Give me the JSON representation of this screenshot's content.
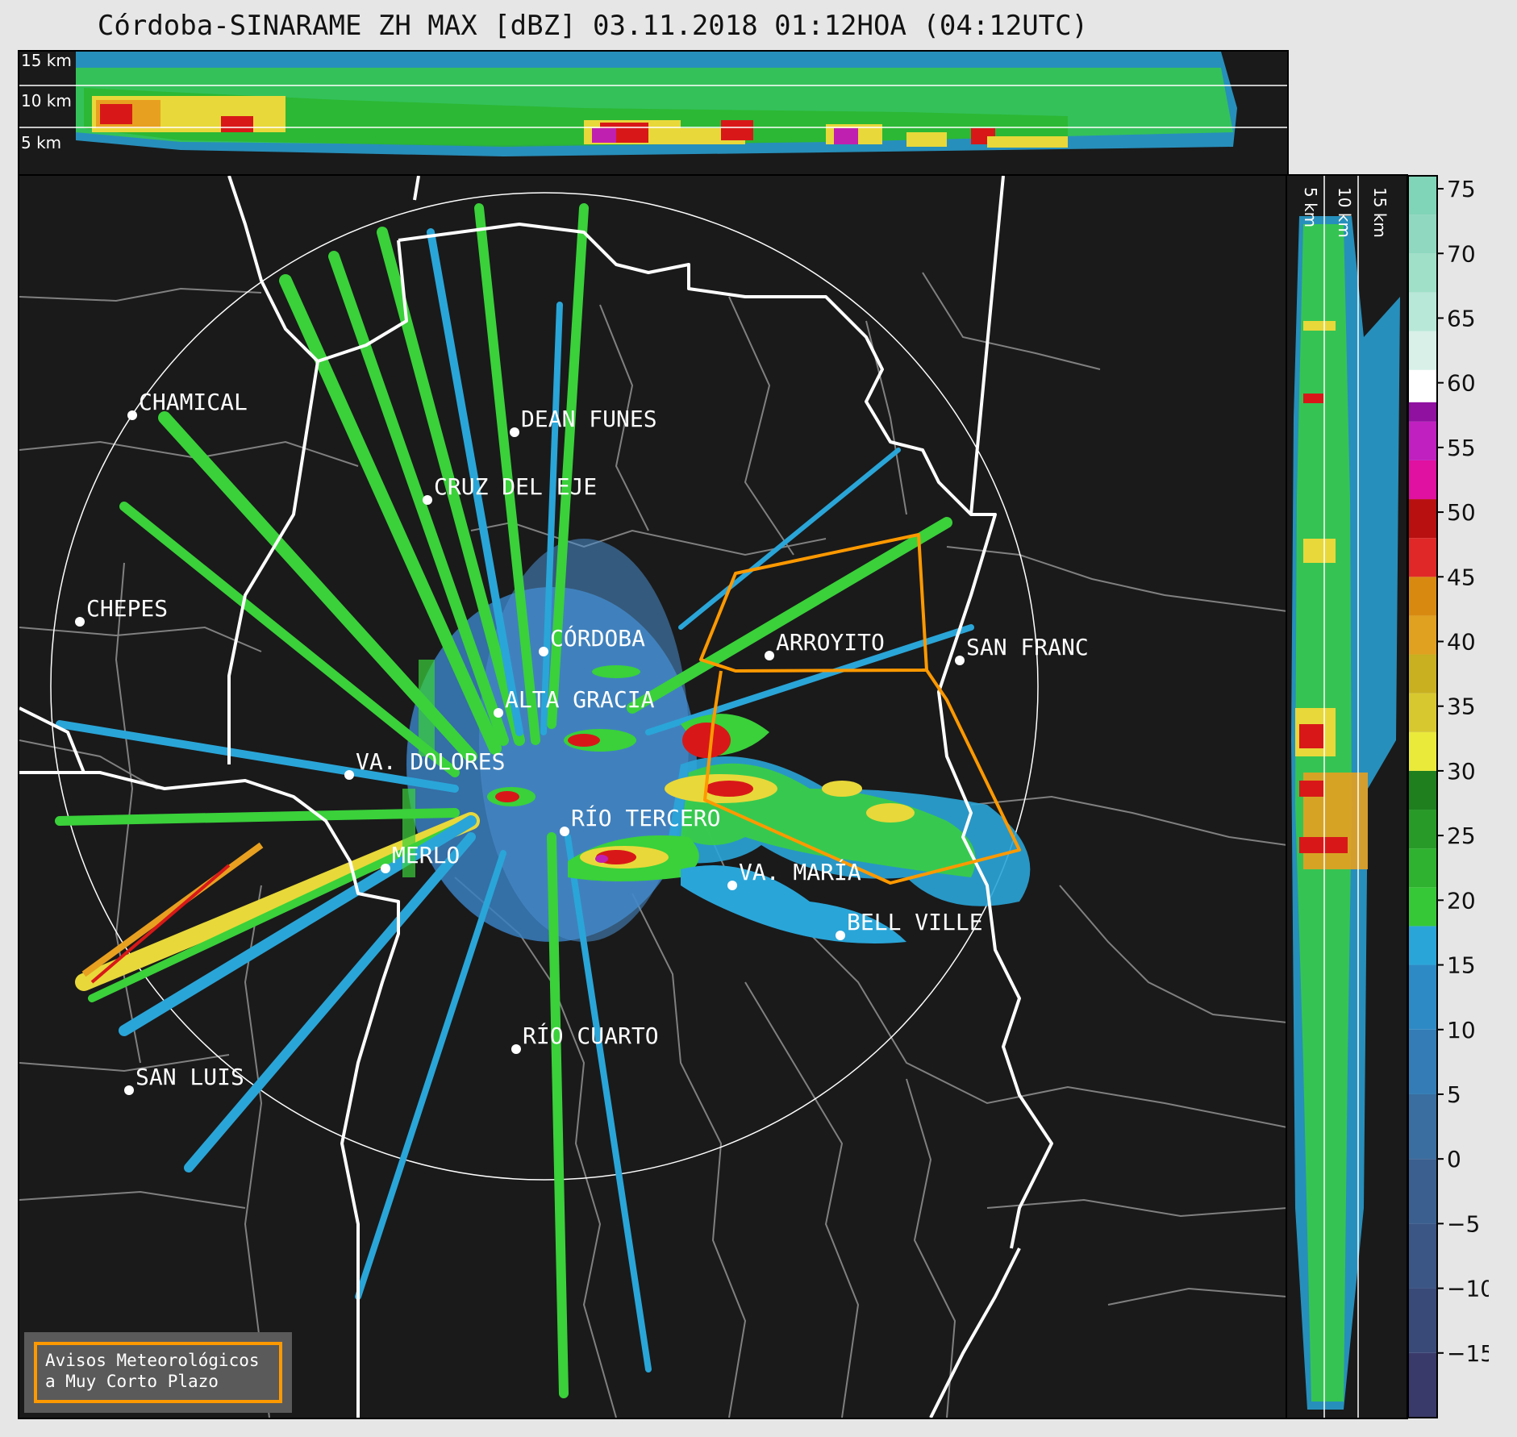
{
  "title": "Córdoba-SINARAME ZH MAX [dBZ] 03.11.2018 01:12HOA (04:12UTC)",
  "top_panel": {
    "height_labels": [
      "15 km",
      "10 km",
      "5 km"
    ]
  },
  "right_panel": {
    "height_labels": [
      "5 km",
      "10 km",
      "15 km"
    ]
  },
  "cities": [
    {
      "name": "CHAMICAL"
    },
    {
      "name": "DEAN FUNES"
    },
    {
      "name": "CRUZ DEL EJE"
    },
    {
      "name": "CHEPES"
    },
    {
      "name": "CÓRDOBA"
    },
    {
      "name": "ARROYITO"
    },
    {
      "name": "SAN FRANC"
    },
    {
      "name": "ALTA GRACIA"
    },
    {
      "name": "VA. DOLORES"
    },
    {
      "name": "RÍO TERCERO"
    },
    {
      "name": "MERLO"
    },
    {
      "name": "VA. MARÍA"
    },
    {
      "name": "BELL VILLE"
    },
    {
      "name": "RÍO CUARTO"
    },
    {
      "name": "SAN LUIS"
    }
  ],
  "colorbar": {
    "unit": "dBZ",
    "ticks": [
      "75",
      "70",
      "65",
      "60",
      "55",
      "50",
      "45",
      "40",
      "35",
      "30",
      "25",
      "20",
      "15",
      "10",
      "5",
      "0",
      "−5",
      "−10",
      "−15"
    ],
    "range": [
      -20,
      76
    ]
  },
  "warning_legend": {
    "line1": "Avisos Meteorológicos",
    "line2": "a Muy Corto Plazo",
    "color": "#ff9900"
  },
  "colors": {
    "background": "#1a1a1a",
    "borders_province": "#ffffff",
    "borders_department": "#808080",
    "warning_polygon": "#ff9900"
  }
}
